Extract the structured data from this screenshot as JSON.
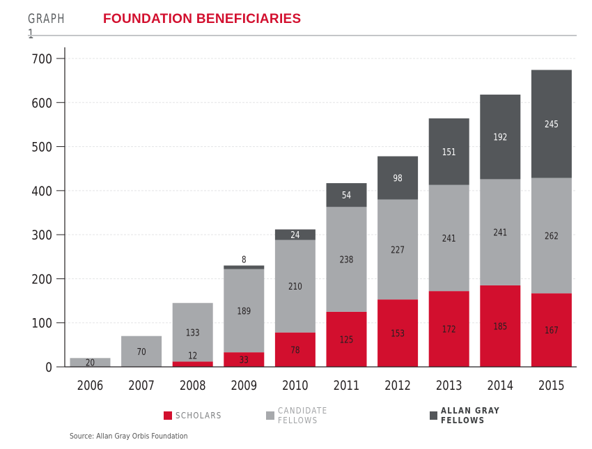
{
  "header": {
    "graph_number": "GRAPH 1",
    "title": "FOUNDATION BENEFICIARIES"
  },
  "colors": {
    "scholars": "#d20f2e",
    "candidate_fellows": "#a7a9ac",
    "allan_gray_fellows": "#54575a",
    "axis": "#231f20",
    "title": "#d20f2e"
  },
  "chart_data": {
    "type": "bar",
    "stacked": true,
    "title": "FOUNDATION BENEFICIARIES",
    "xlabel": "",
    "ylabel": "",
    "ylim": [
      0,
      700
    ],
    "yticks": [
      0,
      100,
      200,
      300,
      400,
      500,
      600,
      700
    ],
    "grid": true,
    "legend_position": "bottom",
    "categories": [
      "2006",
      "2007",
      "2008",
      "2009",
      "2010",
      "2011",
      "2012",
      "2013",
      "2014",
      "2015"
    ],
    "series": [
      {
        "name": "SCHOLARS",
        "key": "scholars",
        "values": [
          0,
          0,
          12,
          33,
          78,
          125,
          153,
          172,
          185,
          167
        ]
      },
      {
        "name": "CANDIDATE FELLOWS",
        "key": "candidate_fellows",
        "values": [
          20,
          70,
          133,
          189,
          210,
          238,
          227,
          241,
          241,
          262
        ]
      },
      {
        "name": "ALLAN GRAY FELLOWS",
        "key": "allan_gray_fellows",
        "values": [
          0,
          0,
          0,
          8,
          24,
          54,
          98,
          151,
          192,
          245
        ]
      }
    ]
  },
  "legend": [
    {
      "label": "SCHOLARS",
      "key": "scholars"
    },
    {
      "label": "CANDIDATE FELLOWS",
      "key": "candidate_fellows"
    },
    {
      "label": "ALLAN GRAY FELLOWS",
      "key": "allan_gray_fellows"
    }
  ],
  "source": "Source: Allan Gray Orbis Foundation"
}
